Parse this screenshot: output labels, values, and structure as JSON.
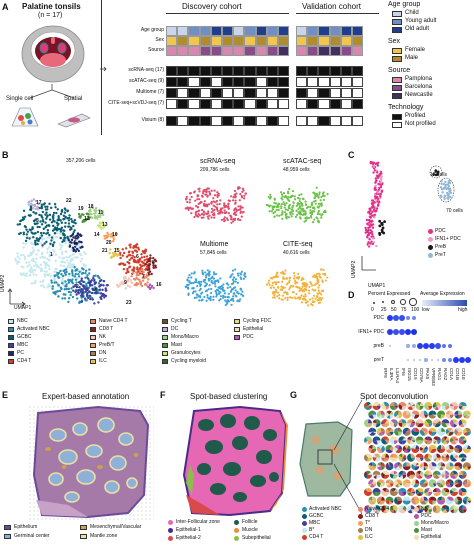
{
  "panelA": {
    "letter": "A",
    "title": "Palatine tonsils",
    "n": "(n = 17)",
    "single_cell": "Single cell",
    "spatial": "Spatial",
    "discovery": "Discovery cohort",
    "validation": "Validation cohort",
    "row_labels": [
      "Age group",
      "Sex",
      "Source"
    ],
    "assays": [
      "scRNA-seq (17)",
      "scATAC-seq (9)",
      "Multiome (7)",
      "CITE-seq+scVDJ-seq (7)",
      "Visium (8)"
    ],
    "colors": {
      "child": "#c9d5ea",
      "young": "#6f8fc6",
      "old": "#1f3f8e",
      "female": "#f2c64a",
      "male": "#b28b2a",
      "pamplona": "#d986b0",
      "barcelona": "#8a4b8a",
      "newcastle": "#43305e",
      "profiled": "#111111",
      "not_profiled": "#ffffff"
    }
  },
  "legendA": {
    "age_title": "Age group",
    "age_items": [
      "Child",
      "Young adult",
      "Old adult"
    ],
    "sex_title": "Sex",
    "sex_items": [
      "Female",
      "Male"
    ],
    "source_title": "Source",
    "source_items": [
      "Pamplona",
      "Barcelona",
      "Newcastle"
    ],
    "tech_title": "Technology",
    "tech_items": [
      "Profiled",
      "Not profiled"
    ]
  },
  "panelB": {
    "letter": "B",
    "total": "357,206 cells",
    "umap1": "UMAP1",
    "umap2": "UMAP2",
    "subs": [
      {
        "title": "scRNA-seq",
        "count": "209,786 cells",
        "color": "#e24b6b"
      },
      {
        "title": "scATAC-seq",
        "count": "48,959 cells",
        "color": "#6cc24a"
      },
      {
        "title": "Multiome",
        "count": "57,845 cells",
        "color": "#3da3d9"
      },
      {
        "title": "CITE-seq",
        "count": "40,616 cells",
        "color": "#f2b33d"
      }
    ],
    "legend": [
      {
        "label": "NBC",
        "color": "#c5e7ef"
      },
      {
        "label": "Activated NBC",
        "color": "#2c8fb0"
      },
      {
        "label": "GCBC",
        "color": "#0b5f73"
      },
      {
        "label": "MBC",
        "color": "#3f3f9e"
      },
      {
        "label": "PC",
        "color": "#1b2a6b"
      },
      {
        "label": "CD4 T",
        "color": "#d23d2a"
      },
      {
        "label": "Naive CD4 T",
        "color": "#e88a6a"
      },
      {
        "label": "CD8 T",
        "color": "#8a1f1f"
      },
      {
        "label": "NK",
        "color": "#f4c6b8"
      },
      {
        "label": "PreB/T",
        "color": "#f5a05a"
      },
      {
        "label": "DN",
        "color": "#a67c52"
      },
      {
        "label": "ILC",
        "color": "#e0c34a"
      },
      {
        "label": "Cycling T",
        "color": "#6e4f2a"
      },
      {
        "label": "DC",
        "color": "#c0b0d8"
      },
      {
        "label": "Mono/Macro",
        "color": "#9fd08a"
      },
      {
        "label": "Mast",
        "color": "#4a8f3a"
      },
      {
        "label": "Granulocytes",
        "color": "#c7e67a"
      },
      {
        "label": "Cycling myeloid",
        "color": "#2f6a2a"
      },
      {
        "label": "Cycling FDC",
        "color": "#e0e07a"
      },
      {
        "label": "Epithelial",
        "color": "#f0e0b0"
      },
      {
        "label": "PDC",
        "color": "#b05ab0"
      }
    ],
    "cluster_numbers": [
      "1",
      "2",
      "3",
      "4",
      "5",
      "6",
      "7",
      "8",
      "9",
      "10",
      "11",
      "12",
      "13",
      "14",
      "15",
      "16",
      "17",
      "18",
      "19",
      "20",
      "21",
      "22",
      "23"
    ]
  },
  "panelC": {
    "letter": "C",
    "cells12": "12 cells",
    "cells70": "70 cells",
    "umap1": "UMAP1",
    "umap2": "UMAP2",
    "legend": [
      {
        "label": "PDC",
        "color": "#e0308a"
      },
      {
        "label": "IFN1+ PDC",
        "color": "#f29ac7"
      },
      {
        "label": "PreB",
        "color": "#1a1a1a"
      },
      {
        "label": "PreT",
        "color": "#8fb7d6"
      }
    ]
  },
  "panelD": {
    "letter": "D",
    "pct_title": "Percent Expressed",
    "pct_values": [
      "0",
      "25",
      "50",
      "75",
      "100"
    ],
    "avg_title": "Average Expression",
    "low": "low",
    "high": "high",
    "rows": [
      "PDC",
      "IFN1+ PDC",
      "preB",
      "preT"
    ],
    "genes": [
      "IRF8",
      "IL3RA",
      "LILRA4",
      "IFI6",
      "ISG15",
      "CD19",
      "CD79A",
      "PAX5",
      "VPREB3",
      "RAG1",
      "RAG2",
      "CD1A",
      "CD1B",
      "CD1E"
    ],
    "dots": [
      [
        0.9,
        0.8,
        0.8,
        0.5,
        0.5,
        0,
        0,
        0,
        0,
        0,
        0,
        0,
        0,
        0
      ],
      [
        0.9,
        0.8,
        0.8,
        0.95,
        0.95,
        0,
        0,
        0,
        0,
        0,
        0,
        0,
        0,
        0
      ],
      [
        0.2,
        0,
        0,
        0.3,
        0.3,
        0.9,
        0.9,
        0.9,
        0.8,
        0.6,
        0.6,
        0,
        0,
        0
      ],
      [
        0,
        0,
        0,
        0.2,
        0.2,
        0.2,
        0.3,
        0.2,
        0.2,
        0.5,
        0.5,
        0.9,
        0.9,
        0.9
      ]
    ]
  },
  "panelE": {
    "letter": "E",
    "title": "Expert-based annotation",
    "legend": [
      {
        "label": "Epithelium",
        "color": "#6b4a9a"
      },
      {
        "label": "Mesenchymal/Vascular",
        "color": "#c9a24a"
      },
      {
        "label": "Germinal center",
        "color": "#8fb0d8"
      },
      {
        "label": "Mantle zone",
        "color": "#e8e0a0"
      }
    ]
  },
  "panelF": {
    "letter": "F",
    "title": "Spot-based clustering",
    "legend": [
      {
        "label": "Inter-Follicular zone",
        "color": "#e667b4"
      },
      {
        "label": "Epithelial-1",
        "color": "#4a2a8a"
      },
      {
        "label": "Epithelial-2",
        "color": "#d94a4a"
      },
      {
        "label": "Follicle",
        "color": "#1f5a4a"
      },
      {
        "label": "Muscle",
        "color": "#f08a3a"
      },
      {
        "label": "Subepithelial",
        "color": "#8ac04a"
      }
    ]
  },
  "panelG": {
    "letter": "G",
    "title": "Spot deconvolution",
    "legend": [
      {
        "label": "Activated NBC",
        "color": "#2c8fb0"
      },
      {
        "label": "GCBC",
        "color": "#0b5f73"
      },
      {
        "label": "MBC",
        "color": "#3f3f9e"
      },
      {
        "label": "B*",
        "color": "#c5e7ef"
      },
      {
        "label": "CD4 T",
        "color": "#d23d2a"
      },
      {
        "label": "Naive CD4 T",
        "color": "#e88a6a"
      },
      {
        "label": "CD8 T",
        "color": "#8a1f1f"
      },
      {
        "label": "T*",
        "color": "#f5a05a"
      },
      {
        "label": "DN",
        "color": "#a67c52"
      },
      {
        "label": "ILC",
        "color": "#e0c34a"
      },
      {
        "label": "NK",
        "color": "#f4c6b8"
      },
      {
        "label": "PDC",
        "color": "#b05ab0"
      },
      {
        "label": "Mono/Macro",
        "color": "#9fd08a"
      },
      {
        "label": "Mast",
        "color": "#4a8f3a"
      },
      {
        "label": "Epithelial",
        "color": "#f0e0b0"
      }
    ]
  }
}
